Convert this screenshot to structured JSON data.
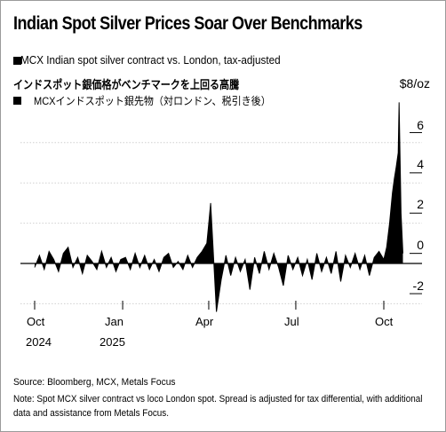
{
  "chart_data": {
    "type": "area",
    "title": "Indian Spot Silver Prices Soar Over Benchmarks",
    "subtitle": "MCX Indian spot silver contract vs. London, tax-adjusted",
    "title_ja": "インドスポット銀価格がベンチマークを上回る高騰",
    "subtitle_ja": "MCXインドスポット銀先物（対ロンドン、税引き後）",
    "unit": "$8/oz",
    "y_ticks": [
      "6",
      "4",
      "2",
      "0",
      "-2"
    ],
    "ylim": [
      -2.9,
      8
    ],
    "grid": true,
    "x_ticks": [
      {
        "label": "Oct",
        "year": "2024"
      },
      {
        "label": "Jan",
        "year": "2025"
      },
      {
        "label": "Apr",
        "year": ""
      },
      {
        "label": "Jul",
        "year": ""
      },
      {
        "label": "Oct",
        "year": ""
      }
    ],
    "x": [
      "2024-10-01",
      "2024-10-06",
      "2024-10-11",
      "2024-10-16",
      "2024-10-21",
      "2024-10-26",
      "2024-10-31",
      "2024-11-05",
      "2024-11-10",
      "2024-11-15",
      "2024-11-20",
      "2024-11-25",
      "2024-11-30",
      "2024-12-05",
      "2024-12-10",
      "2024-12-15",
      "2024-12-20",
      "2024-12-25",
      "2024-12-30",
      "2025-01-04",
      "2025-01-09",
      "2025-01-14",
      "2025-01-19",
      "2025-01-24",
      "2025-01-29",
      "2025-02-03",
      "2025-02-08",
      "2025-02-13",
      "2025-02-18",
      "2025-02-23",
      "2025-02-28",
      "2025-03-05",
      "2025-03-10",
      "2025-03-15",
      "2025-03-20",
      "2025-03-25",
      "2025-03-30",
      "2025-04-01",
      "2025-04-03",
      "2025-04-05",
      "2025-04-09",
      "2025-04-14",
      "2025-04-19",
      "2025-04-24",
      "2025-04-29",
      "2025-05-04",
      "2025-05-09",
      "2025-05-14",
      "2025-05-19",
      "2025-05-24",
      "2025-05-29",
      "2025-06-03",
      "2025-06-08",
      "2025-06-13",
      "2025-06-18",
      "2025-06-23",
      "2025-06-28",
      "2025-07-03",
      "2025-07-08",
      "2025-07-13",
      "2025-07-18",
      "2025-07-23",
      "2025-07-28",
      "2025-08-02",
      "2025-08-07",
      "2025-08-12",
      "2025-08-17",
      "2025-08-22",
      "2025-08-27",
      "2025-09-01",
      "2025-09-06",
      "2025-09-11",
      "2025-09-16",
      "2025-09-21",
      "2025-09-26",
      "2025-10-01",
      "2025-10-04",
      "2025-10-07",
      "2025-10-10",
      "2025-10-12",
      "2025-10-14",
      "2025-10-16",
      "2025-10-17",
      "2025-10-19",
      "2025-10-21"
    ],
    "series": [
      {
        "values": [
          -0.2,
          0.4,
          -0.3,
          0.6,
          0.2,
          -0.4,
          0.5,
          0.8,
          -0.2,
          0.3,
          -0.5,
          0.4,
          0.1,
          -0.3,
          0.6,
          -0.2,
          0.3,
          -0.4,
          0.2,
          0.3,
          -0.3,
          0.5,
          -0.2,
          0.4,
          -0.3,
          0.2,
          -0.4,
          0.3,
          0.5,
          -0.2,
          0.1,
          -0.3,
          0.4,
          -0.2,
          0.3,
          0.6,
          1.0,
          2.0,
          3.0,
          1.2,
          -2.4,
          -0.8,
          0.4,
          -0.6,
          0.3,
          -0.4,
          0.2,
          -1.3,
          0.3,
          -0.5,
          0.6,
          -0.3,
          0.5,
          -0.2,
          -1.1,
          0.4,
          -0.3,
          0.3,
          -0.6,
          0.2,
          -0.8,
          0.5,
          -0.4,
          0.3,
          -0.5,
          0.6,
          -0.9,
          0.4,
          -0.2,
          0.5,
          -0.3,
          0.4,
          -0.6,
          0.3,
          0.6,
          0.2,
          0.8,
          2.0,
          3.5,
          4.2,
          4.8,
          5.5,
          8.0,
          2.5,
          0.5
        ]
      }
    ]
  },
  "source": "Source: Bloomberg, MCX, Metals Focus",
  "note": "Note: Spot MCX silver contract vs loco London spot. Spread is adjusted for tax differential, with additional data and assistance from Metals Focus."
}
